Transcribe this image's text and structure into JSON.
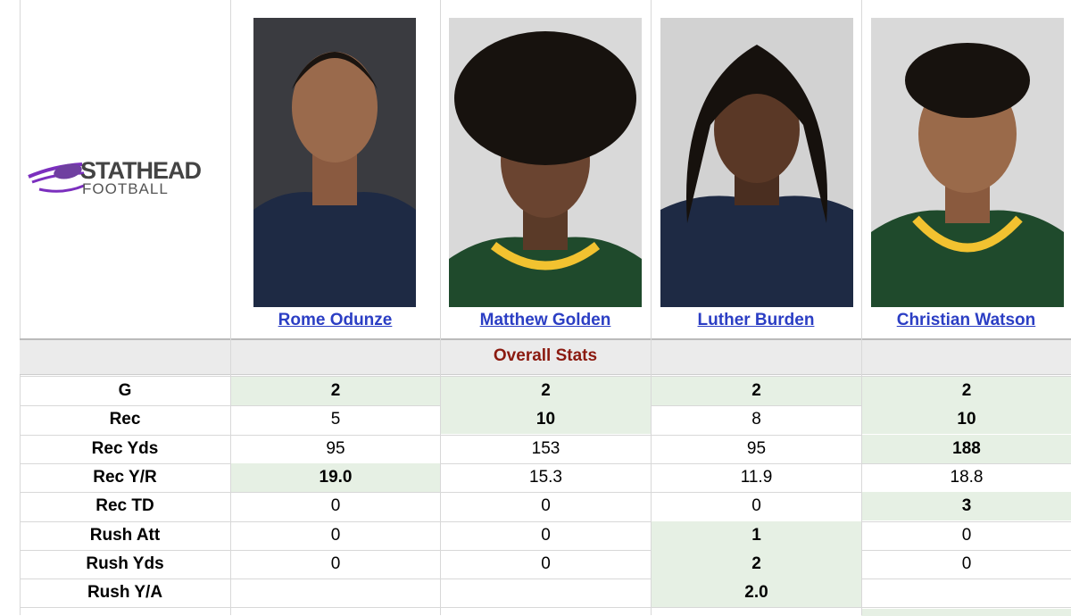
{
  "logo": {
    "line1": "STATHEAD",
    "line2": "FOOTBALL"
  },
  "players": [
    "Rome Odunze",
    "Matthew Golden",
    "Luther Burden",
    "Christian Watson"
  ],
  "section": "Overall Stats",
  "rows": [
    {
      "label": "G",
      "values": [
        "2",
        "2",
        "2",
        "2"
      ],
      "leaders": [
        true,
        true,
        true,
        true
      ]
    },
    {
      "label": "Rec",
      "values": [
        "5",
        "10",
        "8",
        "10"
      ],
      "leaders": [
        false,
        true,
        false,
        true
      ]
    },
    {
      "label": "Rec Yds",
      "values": [
        "95",
        "153",
        "95",
        "188"
      ],
      "leaders": [
        false,
        false,
        false,
        true
      ]
    },
    {
      "label": "Rec Y/R",
      "values": [
        "19.0",
        "15.3",
        "11.9",
        "18.8"
      ],
      "leaders": [
        true,
        false,
        false,
        false
      ]
    },
    {
      "label": "Rec TD",
      "values": [
        "0",
        "0",
        "0",
        "3"
      ],
      "leaders": [
        false,
        false,
        false,
        true
      ]
    },
    {
      "label": "Rush Att",
      "values": [
        "0",
        "0",
        "1",
        "0"
      ],
      "leaders": [
        false,
        false,
        true,
        false
      ]
    },
    {
      "label": "Rush Yds",
      "values": [
        "0",
        "0",
        "2",
        "0"
      ],
      "leaders": [
        false,
        false,
        true,
        false
      ]
    },
    {
      "label": "Rush Y/A",
      "values": [
        null,
        null,
        "2.0",
        null
      ],
      "leaders": [
        false,
        false,
        true,
        false
      ]
    }
  ]
}
